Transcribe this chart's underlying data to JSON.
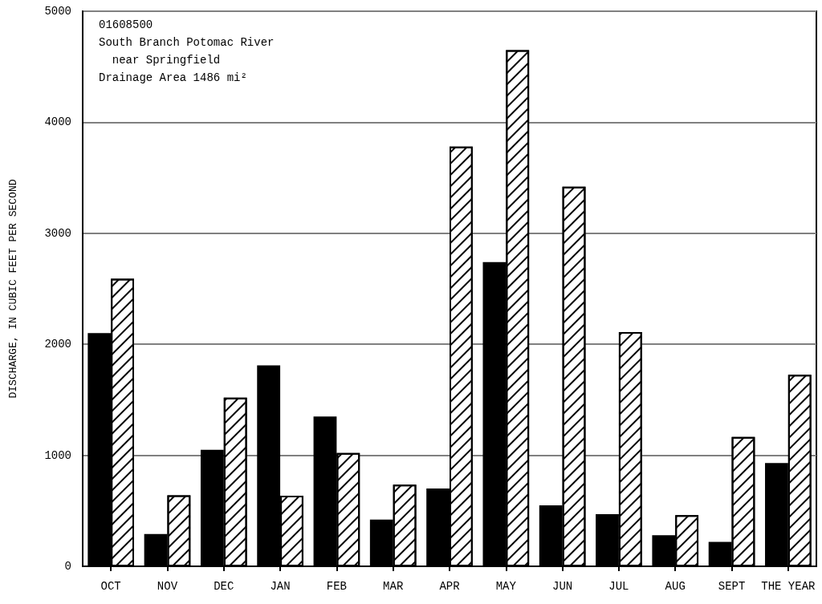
{
  "chart_data": {
    "type": "bar",
    "ylabel": "DISCHARGE, IN CUBIC FEET PER SECOND",
    "categories": [
      "OCT",
      "NOV",
      "DEC",
      "JAN",
      "FEB",
      "MAR",
      "APR",
      "MAY",
      "JUN",
      "JUL",
      "AUG",
      "SEPT",
      "THE YEAR"
    ],
    "series": [
      {
        "color": "#000000",
        "values": [
          2100,
          290,
          1050,
          1810,
          1350,
          420,
          700,
          2740,
          550,
          470,
          280,
          220,
          930
        ]
      },
      {
        "color": "#ffffff",
        "values": [
          2590,
          640,
          1520,
          635,
          1020,
          735,
          3780,
          4650,
          3420,
          2110,
          460,
          1165,
          1725
        ]
      }
    ],
    "ylim": [
      0,
      5000
    ],
    "yticks": [
      0,
      1000,
      2000,
      3000,
      4000,
      5000
    ],
    "grid": "y",
    "annotations": [
      "01608500",
      "South Branch Potomac River",
      "  near Springfield",
      "Drainage Area 1486 mi²"
    ]
  }
}
